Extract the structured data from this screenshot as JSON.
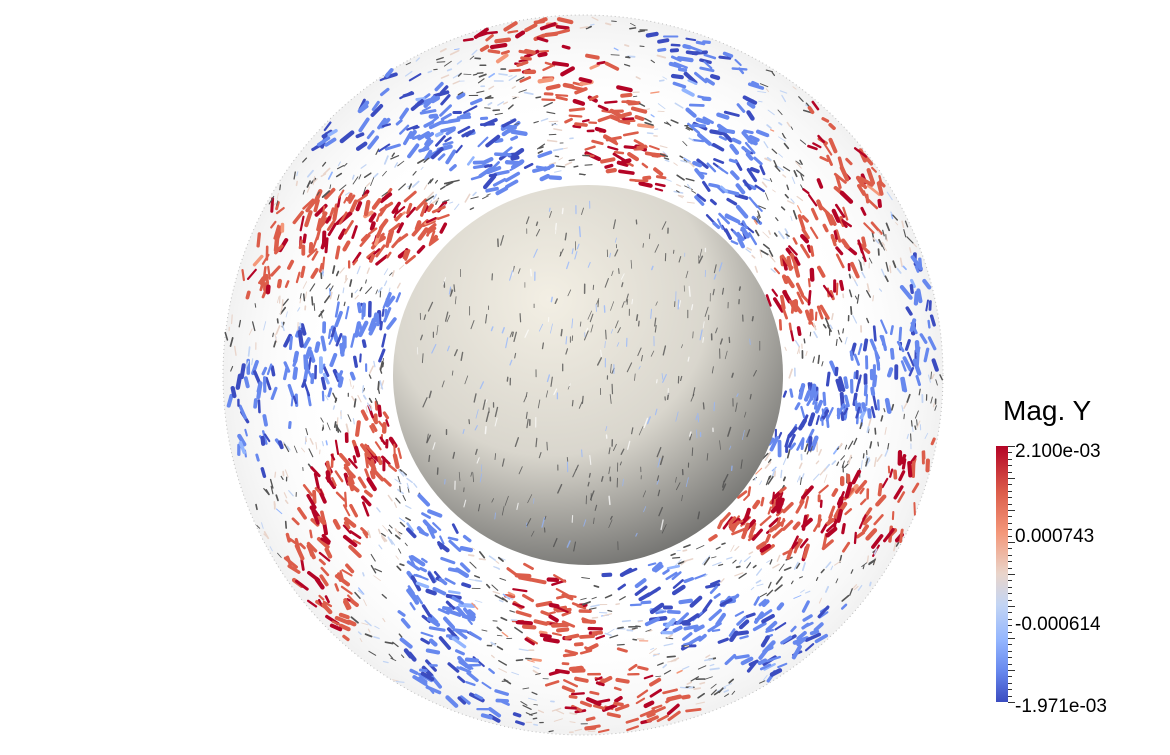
{
  "legend": {
    "title": "Mag. Y",
    "labels": [
      "2.100e-03",
      "0.000743",
      "-0.000614",
      "-1.971e-03"
    ],
    "min": -0.001971,
    "max": 0.0021,
    "colormap": [
      "#3b4cc0",
      "#6788ee",
      "#93b5fe",
      "#c3d5f4",
      "#e9d5cb",
      "#f4987a",
      "#dc5d4a",
      "#b40426"
    ]
  }
}
